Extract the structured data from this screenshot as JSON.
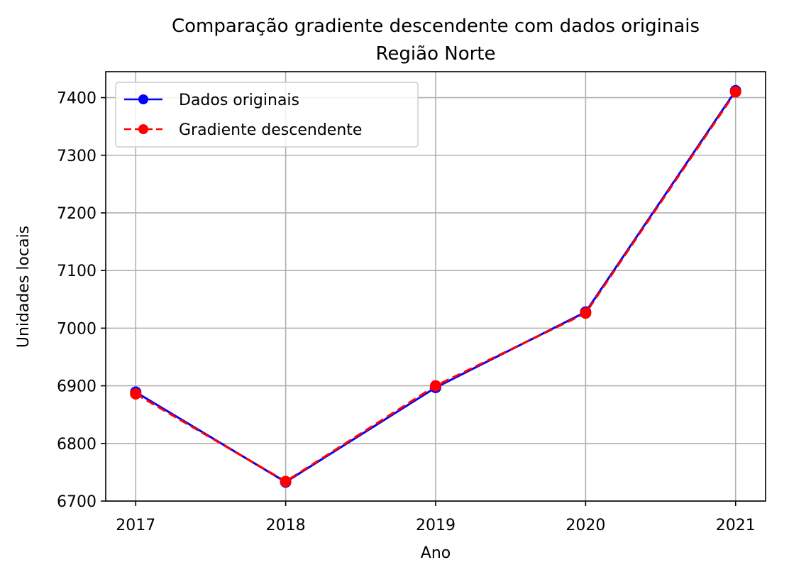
{
  "chart_data": {
    "type": "line",
    "title": "Comparação gradiente descendente com dados originais",
    "subtitle": "Região Norte",
    "xlabel": "Ano",
    "ylabel": "Unidades locais",
    "x": [
      2017,
      2018,
      2019,
      2020,
      2021
    ],
    "xlim": [
      2016.8,
      2021.2
    ],
    "ylim": [
      6700,
      7445
    ],
    "yticks": [
      6700,
      6800,
      6900,
      7000,
      7100,
      7200,
      7300,
      7400
    ],
    "grid": true,
    "legend_position": "top-left",
    "series": [
      {
        "name": "Dados originais",
        "values": [
          6889,
          6733,
          6897,
          7028,
          7412
        ],
        "color": "#0000ff",
        "style": "solid"
      },
      {
        "name": "Gradiente descendente",
        "values": [
          6886,
          6734,
          6900,
          7026,
          7410
        ],
        "color": "#ff0000",
        "style": "dashed"
      }
    ]
  }
}
